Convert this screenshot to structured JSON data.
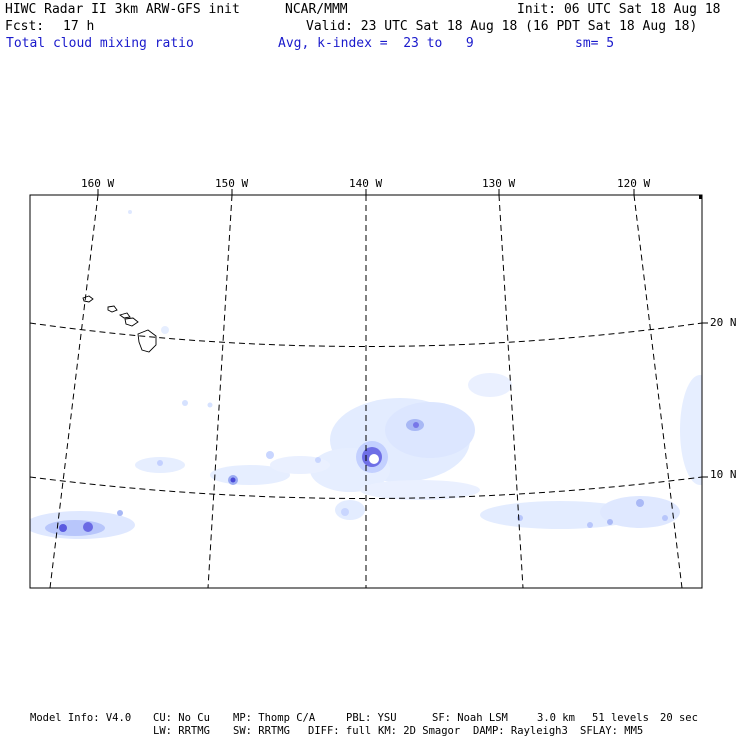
{
  "header": {
    "title": "HIWC Radar II 3km ARW-GFS init",
    "org": "NCAR/MMM",
    "init": "Init: 06 UTC Sat 18 Aug 18",
    "fcst_label": "Fcst:",
    "fcst_value": "17 h",
    "valid": "Valid: 23 UTC Sat 18 Aug 18 (16 PDT Sat 18 Aug 18)",
    "field": "Total cloud mixing ratio",
    "avg": "Avg, k-index =  23 to   9",
    "sm": "sm= 5"
  },
  "map": {
    "lon_labels": [
      "160 W",
      "150 W",
      "140 W",
      "130 W",
      "120 W"
    ],
    "lat_labels": [
      "20 N",
      "10 N"
    ],
    "colors": {
      "light": "#d9e6ff",
      "medium": "#a8b8f5",
      "strong": "#5a5ae0",
      "border": "#000000"
    }
  },
  "footer": {
    "line1": {
      "model": "Model Info: V4.0",
      "cu": "CU: No Cu",
      "mp": "MP: Thomp C/A",
      "pbl": "PBL: YSU",
      "sf": "SF: Noah LSM",
      "res": "3.0 km",
      "levels": "51 levels",
      "dt": "20 sec"
    },
    "line2": {
      "lw": "LW: RRTMG",
      "sw": "SW: RRTMG",
      "diff": "DIFF: full",
      "km": "KM: 2D Smagor",
      "damp": "DAMP: Rayleigh3",
      "sflay": "SFLAY: MM5"
    }
  }
}
